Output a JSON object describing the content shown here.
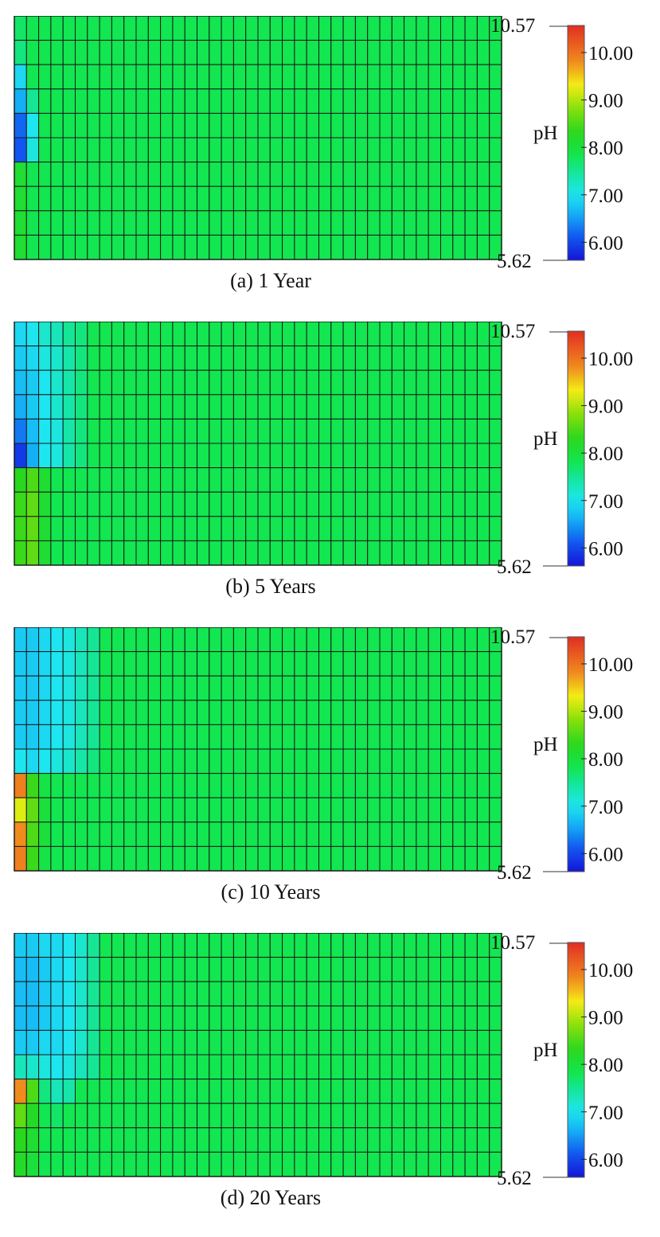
{
  "chart_data": [
    {
      "type": "heatmap",
      "caption": "(a) 1 Year",
      "colorbar": {
        "label": "pH",
        "min": 5.62,
        "max": 10.57,
        "min_label": "5.62",
        "max_label": "10.57",
        "ticks": [
          "6.00",
          "7.00",
          "8.00",
          "9.00",
          "10.00"
        ]
      },
      "grid": {
        "rows": 10,
        "cols": 40,
        "background_pH": 7.8
      },
      "cells": [
        {
          "col": 0,
          "row": 0,
          "pH": 7.7
        },
        {
          "col": 0,
          "row": 1,
          "pH": 7.6
        },
        {
          "col": 0,
          "row": 2,
          "pH": 6.9
        },
        {
          "col": 0,
          "row": 3,
          "pH": 6.6
        },
        {
          "col": 0,
          "row": 4,
          "pH": 6.2
        },
        {
          "col": 0,
          "row": 5,
          "pH": 6.1
        },
        {
          "col": 1,
          "row": 3,
          "pH": 7.5
        },
        {
          "col": 1,
          "row": 4,
          "pH": 7.0
        },
        {
          "col": 1,
          "row": 5,
          "pH": 7.1
        },
        {
          "col": 0,
          "row": 6,
          "pH": 8.1
        },
        {
          "col": 0,
          "row": 7,
          "pH": 8.1
        },
        {
          "col": 0,
          "row": 8,
          "pH": 8.1
        },
        {
          "col": 0,
          "row": 9,
          "pH": 8.1
        }
      ]
    },
    {
      "type": "heatmap",
      "caption": "(b) 5 Years",
      "colorbar": {
        "label": "pH",
        "min": 5.62,
        "max": 10.57,
        "min_label": "5.62",
        "max_label": "10.57",
        "ticks": [
          "6.00",
          "7.00",
          "8.00",
          "9.00",
          "10.00"
        ]
      },
      "grid": {
        "rows": 10,
        "cols": 40,
        "background_pH": 7.8
      },
      "columns_upper": [
        {
          "col": 0,
          "rows": [
            6.9,
            6.8,
            6.7,
            6.6,
            6.3,
            5.9
          ]
        },
        {
          "col": 1,
          "rows": [
            7.0,
            6.9,
            6.8,
            6.8,
            6.7,
            6.6
          ]
        },
        {
          "col": 2,
          "rows": [
            7.2,
            7.1,
            7.0,
            7.0,
            7.0,
            7.0
          ]
        },
        {
          "col": 3,
          "rows": [
            7.3,
            7.2,
            7.2,
            7.2,
            7.1,
            7.1
          ]
        },
        {
          "col": 4,
          "rows": [
            7.5,
            7.4,
            7.4,
            7.4,
            7.4,
            7.4
          ]
        },
        {
          "col": 5,
          "rows": [
            7.6,
            7.6,
            7.6,
            7.6,
            7.6,
            7.6
          ]
        }
      ],
      "columns_lower": [
        {
          "col": 0,
          "rows": [
            8.3,
            8.4,
            8.4,
            8.4
          ]
        },
        {
          "col": 1,
          "rows": [
            8.5,
            8.6,
            8.6,
            8.6
          ]
        },
        {
          "col": 2,
          "rows": [
            8.1,
            8.1,
            8.1,
            8.1
          ]
        }
      ]
    },
    {
      "type": "heatmap",
      "caption": "(c) 10 Years",
      "colorbar": {
        "label": "pH",
        "min": 5.62,
        "max": 10.57,
        "min_label": "5.62",
        "max_label": "10.57",
        "ticks": [
          "6.00",
          "7.00",
          "8.00",
          "9.00",
          "10.00"
        ]
      },
      "grid": {
        "rows": 10,
        "cols": 40,
        "background_pH": 7.8
      },
      "columns_upper": [
        {
          "col": 0,
          "rows": [
            6.8,
            6.8,
            6.8,
            6.8,
            6.8,
            7.0
          ]
        },
        {
          "col": 1,
          "rows": [
            6.8,
            6.8,
            6.8,
            6.8,
            6.8,
            6.9
          ]
        },
        {
          "col": 2,
          "rows": [
            6.9,
            6.9,
            6.9,
            6.9,
            6.9,
            7.0
          ]
        },
        {
          "col": 3,
          "rows": [
            7.0,
            7.0,
            7.0,
            7.0,
            7.0,
            7.1
          ]
        },
        {
          "col": 4,
          "rows": [
            7.1,
            7.1,
            7.1,
            7.1,
            7.1,
            7.2
          ]
        },
        {
          "col": 5,
          "rows": [
            7.3,
            7.3,
            7.3,
            7.3,
            7.3,
            7.4
          ]
        },
        {
          "col": 6,
          "rows": [
            7.5,
            7.5,
            7.5,
            7.5,
            7.5,
            7.6
          ]
        }
      ],
      "columns_lower": [
        {
          "col": 0,
          "rows": [
            9.9,
            9.2,
            9.8,
            9.9
          ]
        },
        {
          "col": 1,
          "rows": [
            8.4,
            8.6,
            8.5,
            8.4
          ]
        },
        {
          "col": 2,
          "rows": [
            7.9,
            8.0,
            8.0,
            7.9
          ]
        }
      ]
    },
    {
      "type": "heatmap",
      "caption": "(d) 20 Years",
      "colorbar": {
        "label": "pH",
        "min": 5.62,
        "max": 10.57,
        "min_label": "5.62",
        "max_label": "10.57",
        "ticks": [
          "6.00",
          "7.00",
          "8.00",
          "9.00",
          "10.00"
        ]
      },
      "grid": {
        "rows": 10,
        "cols": 40,
        "background_pH": 7.8
      },
      "columns_upper": [
        {
          "col": 0,
          "rows": [
            6.8,
            6.7,
            6.7,
            6.7,
            6.8,
            7.3
          ]
        },
        {
          "col": 1,
          "rows": [
            6.8,
            6.7,
            6.7,
            6.7,
            6.8,
            7.2
          ]
        },
        {
          "col": 2,
          "rows": [
            6.9,
            6.8,
            6.8,
            6.8,
            6.9,
            7.1
          ]
        },
        {
          "col": 3,
          "rows": [
            6.9,
            6.9,
            6.9,
            6.9,
            6.9,
            7.0
          ]
        },
        {
          "col": 4,
          "rows": [
            7.0,
            7.0,
            7.0,
            7.0,
            7.0,
            7.1
          ]
        },
        {
          "col": 5,
          "rows": [
            7.2,
            7.2,
            7.2,
            7.2,
            7.2,
            7.3
          ]
        },
        {
          "col": 6,
          "rows": [
            7.5,
            7.5,
            7.5,
            7.5,
            7.5,
            7.5
          ]
        }
      ],
      "columns_lower": [
        {
          "col": 0,
          "rows": [
            9.8,
            8.6,
            8.3,
            8.2
          ]
        },
        {
          "col": 1,
          "rows": [
            8.5,
            8.2,
            8.1,
            8.0
          ]
        },
        {
          "col": 2,
          "rows": [
            7.6,
            7.8,
            7.8,
            7.8
          ]
        },
        {
          "col": 3,
          "rows": [
            7.3,
            7.7,
            7.8,
            7.8
          ]
        },
        {
          "col": 4,
          "rows": [
            7.4,
            7.8,
            7.8,
            7.8
          ]
        }
      ]
    }
  ]
}
